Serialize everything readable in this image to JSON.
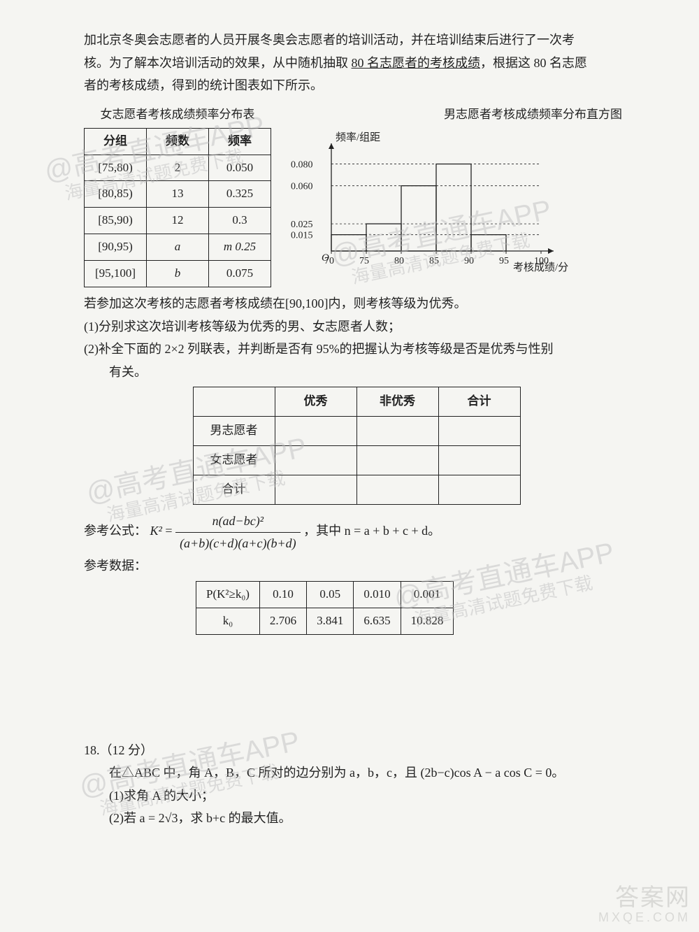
{
  "intro": {
    "l1": "加北京冬奥会志愿者的人员开展冬奥会志愿者的培训活动，并在培训结束后进行了一次考",
    "l2_a": "核。为了解本次培训活动的效果，从中随机抽取 ",
    "l2_u": "80 名志愿者的考核成绩",
    "l2_b": "，根据这 80 名志愿",
    "l3": "者的考核成绩，得到的统计图表如下所示。"
  },
  "female_table": {
    "title": "女志愿者考核成绩频率分布表",
    "headers": [
      "分组",
      "频数",
      "频率"
    ],
    "rows": [
      {
        "grp": "[75,80)",
        "cnt": "2",
        "freq": "0.050"
      },
      {
        "grp": "[80,85)",
        "cnt": "13",
        "freq": "0.325"
      },
      {
        "grp": "[85,90)",
        "cnt": "12",
        "freq": "0.3"
      },
      {
        "grp": "[90,95)",
        "cnt": "a",
        "freq": "m 0.25",
        "hand_cnt": false,
        "hand_freq": true
      },
      {
        "grp": "[95,100]",
        "cnt": "b",
        "freq": "0.075"
      }
    ]
  },
  "histogram": {
    "title": "男志愿者考核成绩频率分布直方图",
    "y_label": "频率/组距",
    "x_label": "考核成绩/分",
    "x_ticks": [
      70,
      75,
      80,
      85,
      90,
      95,
      100
    ],
    "y_ticks": [
      0.015,
      0.025,
      0.06,
      0.08
    ],
    "y_tick_labels": [
      "0.015",
      "0.025",
      "0.060",
      "0.080"
    ],
    "bars": [
      {
        "x": 70,
        "h": 0.015
      },
      {
        "x": 75,
        "h": 0.025
      },
      {
        "x": 80,
        "h": 0.06
      },
      {
        "x": 85,
        "h": 0.08
      },
      {
        "x": 90,
        "h": 0.015
      }
    ],
    "colors": {
      "axis": "#222",
      "bar_stroke": "#222",
      "bar_fill": "none",
      "grid": "#222"
    }
  },
  "body": {
    "cond": "若参加这次考核的志愿者考核成绩在[90,100]内，则考核等级为优秀。",
    "q1": "(1)分别求这次培训考核等级为优秀的男、女志愿者人数；",
    "q2a": "(2)补全下面的 2×2 列联表，并判断是否有 95%的把握认为考核等级是否是优秀与性别",
    "q2b": "有关。"
  },
  "contingency": {
    "headers": [
      "",
      "优秀",
      "非优秀",
      "合计"
    ],
    "rows": [
      "男志愿者",
      "女志愿者",
      "合计"
    ]
  },
  "formula": {
    "label": "参考公式：",
    "k2": "K²",
    "eq": " = ",
    "num": "n(ad−bc)²",
    "den": "(a+b)(c+d)(a+c)(b+d)",
    "tail": "，其中 n = a + b + c + d。"
  },
  "ref": {
    "label": "参考数据：",
    "head": [
      "P(K²≥k₀)",
      "0.10",
      "0.05",
      "0.010",
      "0.001"
    ],
    "row": [
      "k₀",
      "2.706",
      "3.841",
      "6.635",
      "10.828"
    ]
  },
  "q18": {
    "head": "18.（12 分）",
    "l1a": "在△ABC 中，角 A，B，C 所对的边分别为 a，b，c，且 (2b−c)cos A − a cos C = 0。",
    "l2": "(1)求角 A 的大小；",
    "l3": "(2)若 a = 2√3，求 b+c 的最大值。"
  },
  "watermarks": {
    "big": "@高考直通车APP",
    "small": "海量高清试题免费下载"
  },
  "corner": {
    "a": "答案网",
    "b": "MXQE.COM"
  }
}
